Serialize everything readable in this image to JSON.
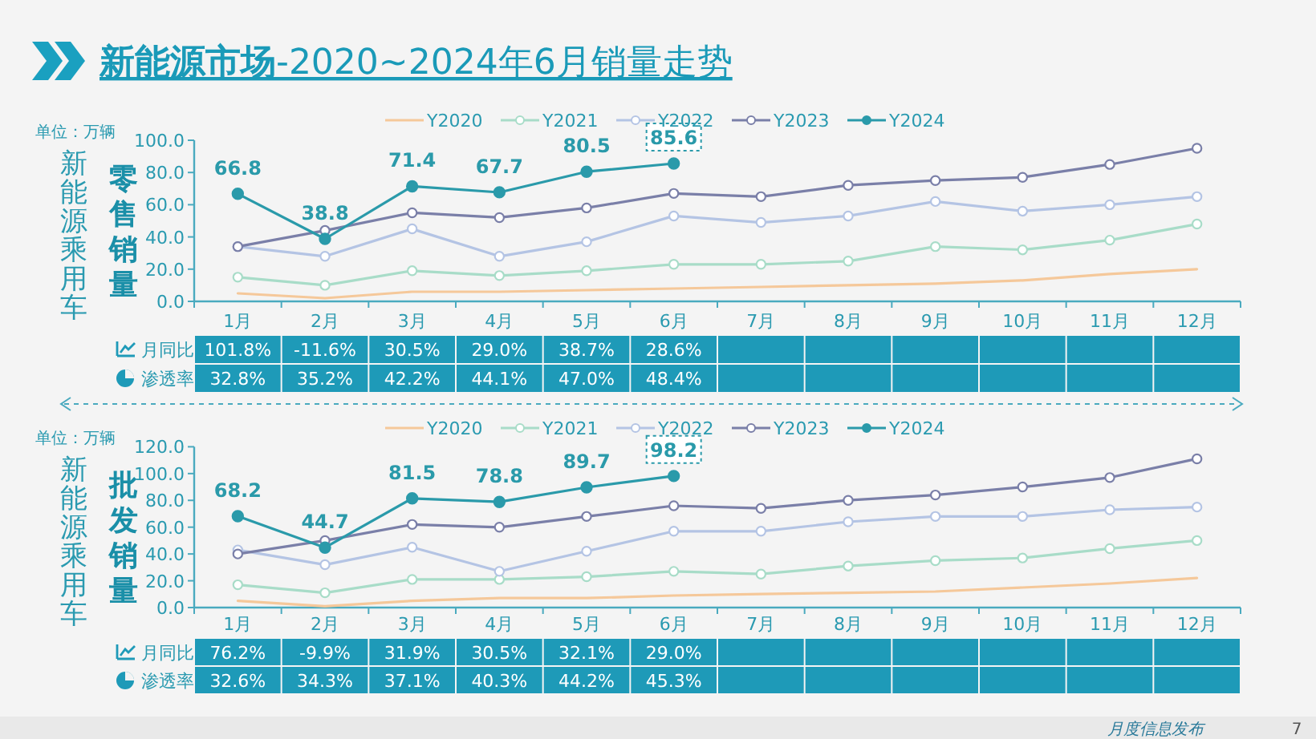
{
  "chart_data": [
    {
      "type": "line",
      "title": "**新能源市场**-2020~2024年6月销量走势",
      "ylabel": "零售销量",
      "annotations": [
        "单位：万辆",
        "新能源乘用车"
      ],
      "categories": [
        "1月",
        "2月",
        "3月",
        "4月",
        "5月",
        "6月",
        "7月",
        "8月",
        "9月",
        "10月",
        "11月",
        "12月"
      ],
      "ylim": [
        0,
        100
      ],
      "yticks": [
        {
          "value": 0,
          "label": "0.0"
        },
        {
          "value": 20,
          "label": "20.0"
        },
        {
          "value": 40,
          "label": "40.0"
        },
        {
          "value": 60,
          "label": "60.0"
        },
        {
          "value": 80,
          "label": "80.0"
        },
        {
          "value": 100,
          "label": "100.0"
        }
      ],
      "legend": "top",
      "series": [
        {
          "name": "Y2020",
          "color": "#f5c89a",
          "marker": "none",
          "values": [
            5,
            2,
            6,
            6,
            7,
            8,
            9,
            10,
            11,
            13,
            17,
            20
          ]
        },
        {
          "name": "Y2021",
          "color": "#a8dcc8",
          "marker": "circle",
          "values": [
            15,
            10,
            19,
            16,
            19,
            23,
            23,
            25,
            34,
            32,
            38,
            48
          ]
        },
        {
          "name": "Y2022",
          "color": "#b4c4e4",
          "marker": "circle",
          "values": [
            34,
            28,
            45,
            28,
            37,
            53,
            49,
            53,
            62,
            56,
            60,
            65
          ]
        },
        {
          "name": "Y2023",
          "color": "#7a7fa8",
          "marker": "circle",
          "values": [
            34,
            44,
            55,
            52,
            58,
            67,
            65,
            72,
            75,
            77,
            85,
            95
          ]
        },
        {
          "name": "Y2024",
          "color": "#2a9aaa",
          "marker": "circle",
          "values": [
            66.8,
            38.8,
            71.4,
            67.7,
            80.5,
            85.6,
            null,
            null,
            null,
            null,
            null,
            null
          ],
          "value_labels": [
            "66.8",
            "38.8",
            "71.4",
            "67.7",
            "80.5",
            "85.6",
            null,
            null,
            null,
            null,
            null,
            null
          ]
        }
      ]
    },
    {
      "type": "other",
      "y_categories": [
        "月同比",
        "渗透率"
      ],
      "cell_labels": [
        [
          "101.8%",
          "-11.6%",
          "30.5%",
          "29.0%",
          "38.7%",
          "28.6%",
          null,
          null,
          null,
          null,
          null,
          null
        ],
        [
          "32.8%",
          "35.2%",
          "42.2%",
          "44.1%",
          "47.0%",
          "48.4%",
          null,
          null,
          null,
          null,
          null,
          null
        ]
      ]
    },
    {
      "type": "line",
      "ylabel": "批发销量",
      "annotations": [
        "单位：万辆",
        "新能源乘用车"
      ],
      "categories": [
        "1月",
        "2月",
        "3月",
        "4月",
        "5月",
        "6月",
        "7月",
        "8月",
        "9月",
        "10月",
        "11月",
        "12月"
      ],
      "ylim": [
        0,
        120
      ],
      "yticks": [
        {
          "value": 0,
          "label": "0.0"
        },
        {
          "value": 20,
          "label": "20.0"
        },
        {
          "value": 40,
          "label": "40.0"
        },
        {
          "value": 60,
          "label": "60.0"
        },
        {
          "value": 80,
          "label": "80.0"
        },
        {
          "value": 100,
          "label": "100.0"
        },
        {
          "value": 120,
          "label": "120.0"
        }
      ],
      "legend": "top",
      "series": [
        {
          "name": "Y2020",
          "color": "#f5c89a",
          "marker": "none",
          "values": [
            5,
            1,
            5,
            7,
            7,
            9,
            10,
            11,
            12,
            15,
            18,
            22
          ]
        },
        {
          "name": "Y2021",
          "color": "#a8dcc8",
          "marker": "circle",
          "values": [
            17,
            11,
            21,
            21,
            23,
            27,
            25,
            31,
            35,
            37,
            44,
            50
          ]
        },
        {
          "name": "Y2022",
          "color": "#b4c4e4",
          "marker": "circle",
          "values": [
            43,
            32,
            45,
            27,
            42,
            57,
            57,
            64,
            68,
            68,
            73,
            75
          ]
        },
        {
          "name": "Y2023",
          "color": "#7a7fa8",
          "marker": "circle",
          "values": [
            40,
            50,
            62,
            60,
            68,
            76,
            74,
            80,
            84,
            90,
            97,
            111
          ]
        },
        {
          "name": "Y2024",
          "color": "#2a9aaa",
          "marker": "circle",
          "values": [
            68.2,
            44.7,
            81.5,
            78.8,
            89.7,
            98.2,
            null,
            null,
            null,
            null,
            null,
            null
          ],
          "value_labels": [
            "68.2",
            "44.7",
            "81.5",
            "78.8",
            "89.7",
            "98.2",
            null,
            null,
            null,
            null,
            null,
            null
          ]
        }
      ]
    },
    {
      "type": "other",
      "y_categories": [
        "月同比",
        "渗透率"
      ],
      "annotations": [
        "月度信息发布",
        "7"
      ],
      "cell_labels": [
        [
          "76.2%",
          "-9.9%",
          "31.9%",
          "30.5%",
          "32.1%",
          "29.0%",
          null,
          null,
          null,
          null,
          null,
          null
        ],
        [
          "32.6%",
          "34.3%",
          "37.1%",
          "40.3%",
          "44.2%",
          "45.3%",
          null,
          null,
          null,
          null,
          null,
          null
        ]
      ]
    }
  ]
}
